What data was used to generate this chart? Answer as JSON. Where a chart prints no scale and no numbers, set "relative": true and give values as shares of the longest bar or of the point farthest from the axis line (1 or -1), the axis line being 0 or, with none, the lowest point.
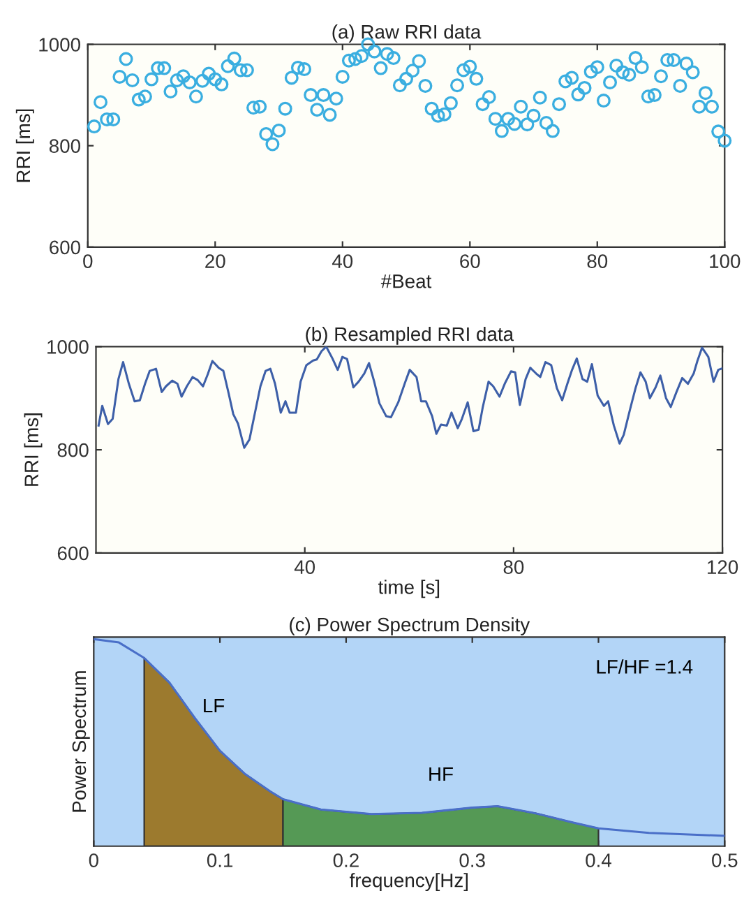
{
  "chart_data": [
    {
      "type": "scatter",
      "title": "(a) Raw RRI data",
      "xlabel": "#Beat",
      "ylabel": "RRI [ms]",
      "marker": "circle",
      "xlim": [
        0,
        100
      ],
      "xticks": [
        0,
        20,
        40,
        60,
        80,
        100
      ],
      "ylim": [
        600,
        1000
      ],
      "yticks": [
        600,
        800,
        1000
      ],
      "series": [
        {
          "color": "#3aaee0",
          "x": [
            1,
            2,
            3,
            4,
            5,
            6,
            7,
            8,
            9,
            10,
            11,
            12,
            13,
            14,
            15,
            16,
            17,
            18,
            19,
            20,
            21,
            22,
            23,
            24,
            25,
            26,
            27,
            28,
            29,
            30,
            31,
            32,
            33,
            34,
            35,
            36,
            37,
            38,
            39,
            40,
            41,
            42,
            43,
            44,
            45,
            46,
            47,
            48,
            49,
            50,
            51,
            52,
            53,
            54,
            55,
            56,
            57,
            58,
            59,
            60,
            61,
            62,
            63,
            64,
            65,
            66,
            67,
            68,
            69,
            70,
            71,
            72,
            73,
            74,
            75,
            76,
            77,
            78,
            79,
            80,
            81,
            82,
            83,
            84,
            85,
            86,
            87,
            88,
            89,
            90,
            91,
            92,
            93,
            94,
            95,
            96,
            97,
            98,
            99,
            100
          ],
          "values": [
            838,
            886,
            852,
            852,
            936,
            971,
            929,
            891,
            897,
            931,
            953,
            953,
            907,
            929,
            937,
            925,
            897,
            928,
            942,
            931,
            921,
            957,
            972,
            949,
            949,
            875,
            877,
            823,
            803,
            830,
            873,
            934,
            954,
            951,
            900,
            871,
            900,
            861,
            893,
            936,
            968,
            971,
            977,
            1000,
            986,
            953,
            981,
            973,
            919,
            932,
            948,
            967,
            918,
            873,
            859,
            862,
            884,
            919,
            949,
            956,
            932,
            882,
            896,
            853,
            829,
            853,
            843,
            877,
            842,
            859,
            895,
            845,
            829,
            882,
            927,
            934,
            901,
            914,
            946,
            955,
            889,
            925,
            958,
            945,
            940,
            973,
            955,
            897,
            900,
            937,
            969,
            969,
            918,
            962,
            945,
            877,
            904,
            877,
            828,
            810
          ]
        }
      ]
    },
    {
      "type": "line",
      "title": "(b) Resampled RRI data",
      "xlabel": "time [s]",
      "ylabel": "RRI [ms]",
      "xlim": [
        0,
        120
      ],
      "xticks": [
        40,
        80,
        120
      ],
      "ylim": [
        600,
        1000
      ],
      "yticks": [
        600,
        800,
        1000
      ],
      "series": [
        {
          "color": "#3d5fa8",
          "x": [
            0.5,
            1.2,
            2.3,
            3.2,
            4.3,
            5.2,
            6.3,
            7.4,
            8.4,
            9.4,
            10.3,
            11.5,
            12.6,
            13.4,
            14.6,
            15.6,
            16.4,
            17.4,
            18.5,
            19.5,
            20.5,
            21.4,
            22.3,
            23.5,
            24.4,
            25.4,
            26.3,
            27.2,
            28.4,
            29.4,
            30.5,
            31.5,
            32.5,
            33.4,
            34.3,
            35.4,
            36.3,
            37.1,
            38.3,
            39.2,
            40.3,
            41.6,
            42.3,
            43.2,
            44.1,
            45.3,
            46.3,
            47.2,
            48.1,
            49.3,
            50.3,
            51.4,
            52.3,
            53.3,
            54.3,
            55.6,
            56.5,
            57.9,
            59.2,
            60.1,
            61.4,
            62.3,
            63.2,
            64.4,
            65.2,
            66.1,
            67.2,
            68.1,
            69.3,
            70.1,
            71.2,
            72.3,
            73.3,
            74.1,
            75.2,
            76.1,
            77.3,
            78.3,
            79.5,
            80.3,
            81.2,
            82.3,
            83.2,
            84.3,
            85.1,
            86.1,
            87.2,
            88.3,
            89.3,
            90.3,
            91.2,
            92.1,
            93.2,
            94.1,
            95.0,
            96.1,
            97.3,
            98.1,
            99.2,
            100.3,
            101.1,
            102.3,
            103.4,
            104.3,
            105.3,
            106.1,
            107.2,
            108.1,
            109.2,
            110.1,
            111.2,
            112.3,
            113.4,
            114.5,
            115.2,
            116.1,
            117.3,
            118.3,
            119.2,
            120
          ],
          "values": [
            847,
            885,
            850,
            860,
            937,
            970,
            928,
            894,
            896,
            928,
            953,
            957,
            912,
            923,
            934,
            928,
            903,
            923,
            941,
            935,
            923,
            946,
            972,
            959,
            953,
            910,
            869,
            851,
            804,
            820,
            874,
            923,
            953,
            957,
            928,
            872,
            894,
            872,
            872,
            932,
            964,
            973,
            975,
            991,
            1000,
            977,
            955,
            980,
            976,
            921,
            932,
            948,
            968,
            932,
            890,
            865,
            863,
            892,
            930,
            955,
            941,
            894,
            894,
            865,
            831,
            849,
            847,
            872,
            842,
            860,
            892,
            836,
            839,
            883,
            932,
            923,
            903,
            928,
            952,
            950,
            887,
            937,
            959,
            948,
            941,
            970,
            964,
            919,
            896,
            928,
            955,
            977,
            937,
            932,
            966,
            905,
            885,
            894,
            847,
            812,
            829,
            878,
            921,
            950,
            932,
            900,
            921,
            944,
            900,
            883,
            912,
            939,
            928,
            948,
            972,
            998,
            980,
            932,
            955,
            958
          ]
        }
      ]
    },
    {
      "type": "area",
      "title": "(c) Power Spectrum Density",
      "xlabel": "frequency[Hz]",
      "ylabel": "Power Spectrum",
      "relative": true,
      "xlim": [
        0,
        0.5
      ],
      "xticks": [
        0,
        0.1,
        0.2,
        0.3,
        0.4,
        0.5
      ],
      "annotations": [
        "LF/HF =1.4"
      ],
      "series": [
        {
          "type": "line",
          "color": "#4a6fc8",
          "x": [
            0,
            0.02,
            0.04,
            0.06,
            0.08,
            0.1,
            0.12,
            0.14,
            0.15,
            0.18,
            0.22,
            0.26,
            0.3,
            0.32,
            0.35,
            0.38,
            0.4,
            0.44,
            0.5
          ],
          "values": [
            1.0,
            0.984,
            0.909,
            0.79,
            0.62,
            0.461,
            0.348,
            0.264,
            0.227,
            0.177,
            0.155,
            0.161,
            0.186,
            0.193,
            0.159,
            0.114,
            0.086,
            0.064,
            0.05
          ]
        },
        {
          "name": "LF",
          "color": "#9c7a2e",
          "x": [
            0.04,
            0.06,
            0.08,
            0.1,
            0.12,
            0.14,
            0.15
          ],
          "values": [
            0.909,
            0.79,
            0.62,
            0.461,
            0.348,
            0.264,
            0.227
          ]
        },
        {
          "name": "HF",
          "color": "#559955",
          "x": [
            0.15,
            0.18,
            0.22,
            0.26,
            0.3,
            0.32,
            0.35,
            0.38,
            0.4
          ],
          "values": [
            0.227,
            0.177,
            0.155,
            0.161,
            0.186,
            0.193,
            0.159,
            0.114,
            0.086
          ]
        }
      ]
    }
  ]
}
